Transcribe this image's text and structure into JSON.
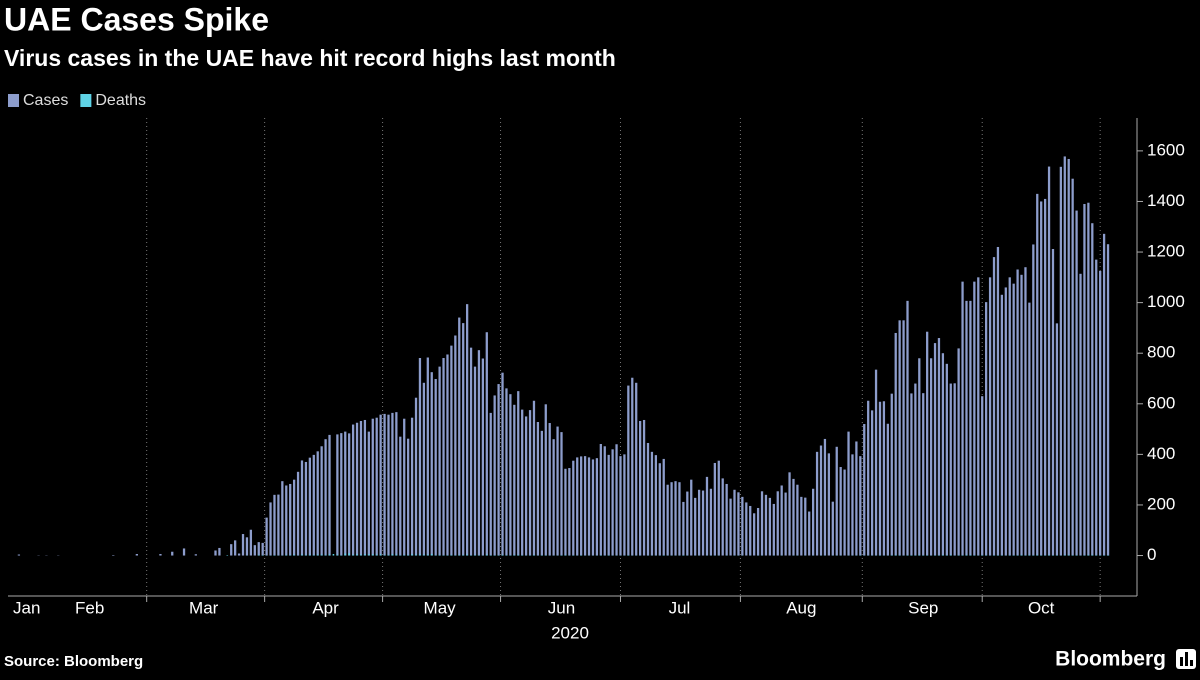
{
  "chart_data": {
    "type": "bar",
    "title": "UAE Cases Spike",
    "subtitle": "Virus cases in the UAE have hit record highs last month",
    "xlabel": "2020",
    "source": "Source: Bloomberg",
    "brand": "Bloomberg",
    "ylim": [
      -160,
      1730
    ],
    "yticks": [
      0,
      200,
      400,
      600,
      800,
      1000,
      1200,
      1400,
      1600
    ],
    "categories": [
      null,
      null,
      null,
      "Jan",
      null,
      null,
      null,
      null,
      null,
      null,
      null,
      null,
      null,
      null,
      null,
      null,
      null,
      null,
      null,
      "Feb",
      null,
      null,
      null,
      null,
      null,
      null,
      null,
      null,
      null,
      null,
      null,
      null,
      null,
      null,
      null,
      null,
      null,
      null,
      null,
      null,
      null,
      null,
      null,
      null,
      null,
      null,
      null,
      null,
      "Mar",
      null,
      null,
      null,
      null,
      null,
      null,
      null,
      null,
      null,
      null,
      null,
      null,
      null,
      null,
      null,
      null,
      null,
      null,
      null,
      null,
      null,
      null,
      null,
      null,
      null,
      null,
      null,
      null,
      null,
      null,
      "Apr",
      null,
      null,
      null,
      null,
      null,
      null,
      null,
      null,
      null,
      null,
      null,
      null,
      null,
      null,
      null,
      null,
      null,
      null,
      null,
      null,
      null,
      null,
      null,
      null,
      null,
      null,
      null,
      null,
      "May",
      null,
      null,
      null,
      null,
      null,
      null,
      null,
      null,
      null,
      null,
      null,
      null,
      null,
      null,
      null,
      null,
      null,
      null,
      null,
      null,
      null,
      null,
      null,
      null,
      null,
      null,
      null,
      null,
      null,
      null,
      "Jun",
      null,
      null,
      null,
      null,
      null,
      null,
      null,
      null,
      null,
      null,
      null,
      null,
      null,
      null,
      null,
      null,
      null,
      null,
      null,
      null,
      null,
      null,
      null,
      null,
      null,
      null,
      null,
      null,
      null,
      "Jul",
      null,
      null,
      null,
      null,
      null,
      null,
      null,
      null,
      null,
      null,
      null,
      null,
      null,
      null,
      null,
      null,
      null,
      null,
      null,
      null,
      null,
      null,
      null,
      null,
      null,
      null,
      null,
      null,
      null,
      null,
      "Aug",
      null,
      null,
      null,
      null,
      null,
      null,
      null,
      null,
      null,
      null,
      null,
      null,
      null,
      null,
      null,
      null,
      null,
      null,
      null,
      null,
      null,
      null,
      null,
      null,
      null,
      null,
      null,
      null,
      null,
      null,
      "Sep",
      null,
      null,
      null,
      null,
      null,
      null,
      null,
      null,
      null,
      null,
      null,
      null,
      null,
      null,
      null,
      null,
      null,
      null,
      null,
      null,
      null,
      null,
      null,
      null,
      null,
      null,
      null,
      null,
      null,
      "Oct",
      null,
      null,
      null,
      null,
      null,
      null,
      null,
      null,
      null,
      null,
      null,
      null,
      null,
      null,
      null,
      null,
      null
    ],
    "series": [
      {
        "name": "Cases",
        "color": "#8d9dcc",
        "values": [
          0,
          4,
          0,
          0,
          0,
          0,
          1,
          0,
          1,
          0,
          0,
          1,
          0,
          0,
          0,
          0,
          0,
          0,
          0,
          0,
          0,
          0,
          0,
          0,
          0,
          2,
          0,
          0,
          0,
          0,
          0,
          6,
          0,
          0,
          0,
          0,
          0,
          6,
          0,
          0,
          15,
          0,
          0,
          28,
          0,
          0,
          5,
          0,
          0,
          0,
          0,
          20,
          30,
          0,
          0,
          45,
          60,
          8,
          85,
          72,
          102,
          41,
          53,
          50,
          150,
          210,
          240,
          241,
          294,
          277,
          283,
          300,
          331,
          376,
          370,
          387,
          398,
          412,
          432,
          460,
          477,
          0,
          479,
          484,
          490,
          483,
          518,
          525,
          532,
          536,
          490,
          541,
          545,
          557,
          560,
          557,
          564,
          567,
          470,
          541,
          462,
          545,
          624,
          781,
          683,
          783,
          725,
          698,
          747,
          781,
          795,
          830,
          870,
          941,
          919,
          994,
          822,
          747,
          812,
          779,
          883,
          564,
          633,
          678,
          723,
          661,
          638,
          596,
          650,
          577,
          550,
          575,
          612,
          528,
          493,
          598,
          524,
          460,
          510,
          488,
          343,
          346,
          375,
          388,
          392,
          393,
          388,
          380,
          385,
          441,
          432,
          398,
          420,
          440,
          393,
          400,
          672,
          703,
          683,
          532,
          536,
          445,
          410,
          397,
          365,
          382,
          280,
          290,
          294,
          290,
          212,
          253,
          300,
          228,
          260,
          257,
          311,
          264,
          366,
          375,
          305,
          283,
          225,
          260,
          250,
          232,
          210,
          196,
          167,
          188,
          254,
          240,
          228,
          204,
          254,
          277,
          249,
          329,
          303,
          280,
          232,
          229,
          174,
          264,
          410,
          435,
          461,
          404,
          213,
          430,
          350,
          340,
          490,
          400,
          451,
          393,
          520,
          612,
          574,
          735,
          608,
          610,
          521,
          640,
          880,
          930,
          930,
          1007,
          641,
          680,
          780,
          642,
          885,
          780,
          840,
          860,
          800,
          758,
          680,
          681,
          819,
          1083,
          1007,
          1007,
          1083,
          1100,
          630,
          1002,
          1100,
          1180,
          1220,
          1031,
          1060,
          1100,
          1075,
          1131,
          1110,
          1140,
          1000,
          1230,
          1430,
          1400,
          1410,
          1538,
          1212,
          918,
          1537,
          1578,
          1568,
          1490,
          1364,
          1114,
          1390,
          1395,
          1314,
          1170,
          1125,
          1272,
          1231
        ]
      },
      {
        "name": "Deaths",
        "color": "#5fd3e6",
        "values": [
          0,
          0,
          0,
          0,
          0,
          0,
          0,
          0,
          0,
          0,
          0,
          0,
          0,
          0,
          0,
          0,
          0,
          0,
          0,
          0,
          0,
          0,
          0,
          0,
          0,
          0,
          0,
          0,
          0,
          0,
          0,
          0,
          0,
          0,
          0,
          0,
          0,
          0,
          0,
          0,
          0,
          0,
          0,
          0,
          0,
          0,
          0,
          0,
          0,
          0,
          0,
          0,
          0,
          0,
          2,
          0,
          0,
          0,
          0,
          1,
          0,
          0,
          3,
          2,
          1,
          1,
          2,
          1,
          1,
          3,
          3,
          4,
          1,
          4,
          3,
          4,
          3,
          4,
          4,
          3,
          5,
          6,
          4,
          2,
          8,
          9,
          4,
          5,
          4,
          5,
          5,
          5,
          4,
          5,
          3,
          3,
          5,
          4,
          2,
          3,
          3,
          5,
          4,
          5,
          4,
          4,
          6,
          2,
          3,
          2,
          2,
          3,
          2,
          3,
          3,
          4,
          2,
          3,
          2,
          1,
          4,
          2,
          2,
          2,
          3,
          2,
          2,
          3,
          3,
          2,
          1,
          2,
          3,
          1,
          2,
          2,
          1,
          1,
          1,
          2,
          3,
          1,
          2,
          1,
          2,
          1,
          1,
          1,
          1,
          2,
          1,
          2,
          1,
          1,
          1,
          1,
          2,
          1,
          1,
          1,
          0,
          1,
          1,
          1,
          1,
          2,
          1,
          1,
          1,
          1,
          2,
          1,
          0,
          1,
          1,
          0,
          1,
          1,
          1,
          1,
          0,
          1,
          0,
          1,
          1,
          1,
          0,
          1,
          0,
          1,
          1,
          0,
          0,
          1,
          0,
          1,
          0,
          0,
          1,
          1,
          0,
          1,
          0,
          1,
          0,
          1,
          1,
          0,
          1,
          1,
          1,
          0,
          1,
          1,
          1,
          2,
          1,
          1,
          1,
          1,
          2,
          1,
          1,
          2,
          3,
          2,
          1,
          2,
          2,
          2,
          3,
          2,
          2,
          1,
          2,
          2,
          3,
          2,
          3,
          1,
          2,
          2,
          3,
          3,
          2,
          1,
          2,
          2,
          1,
          2,
          2,
          2,
          1,
          2,
          2,
          2,
          3,
          2,
          3,
          2,
          3,
          2,
          2,
          3,
          2,
          2,
          1,
          3,
          3,
          2,
          2,
          1,
          2,
          3,
          3,
          2,
          2,
          2,
          2
        ]
      }
    ]
  }
}
